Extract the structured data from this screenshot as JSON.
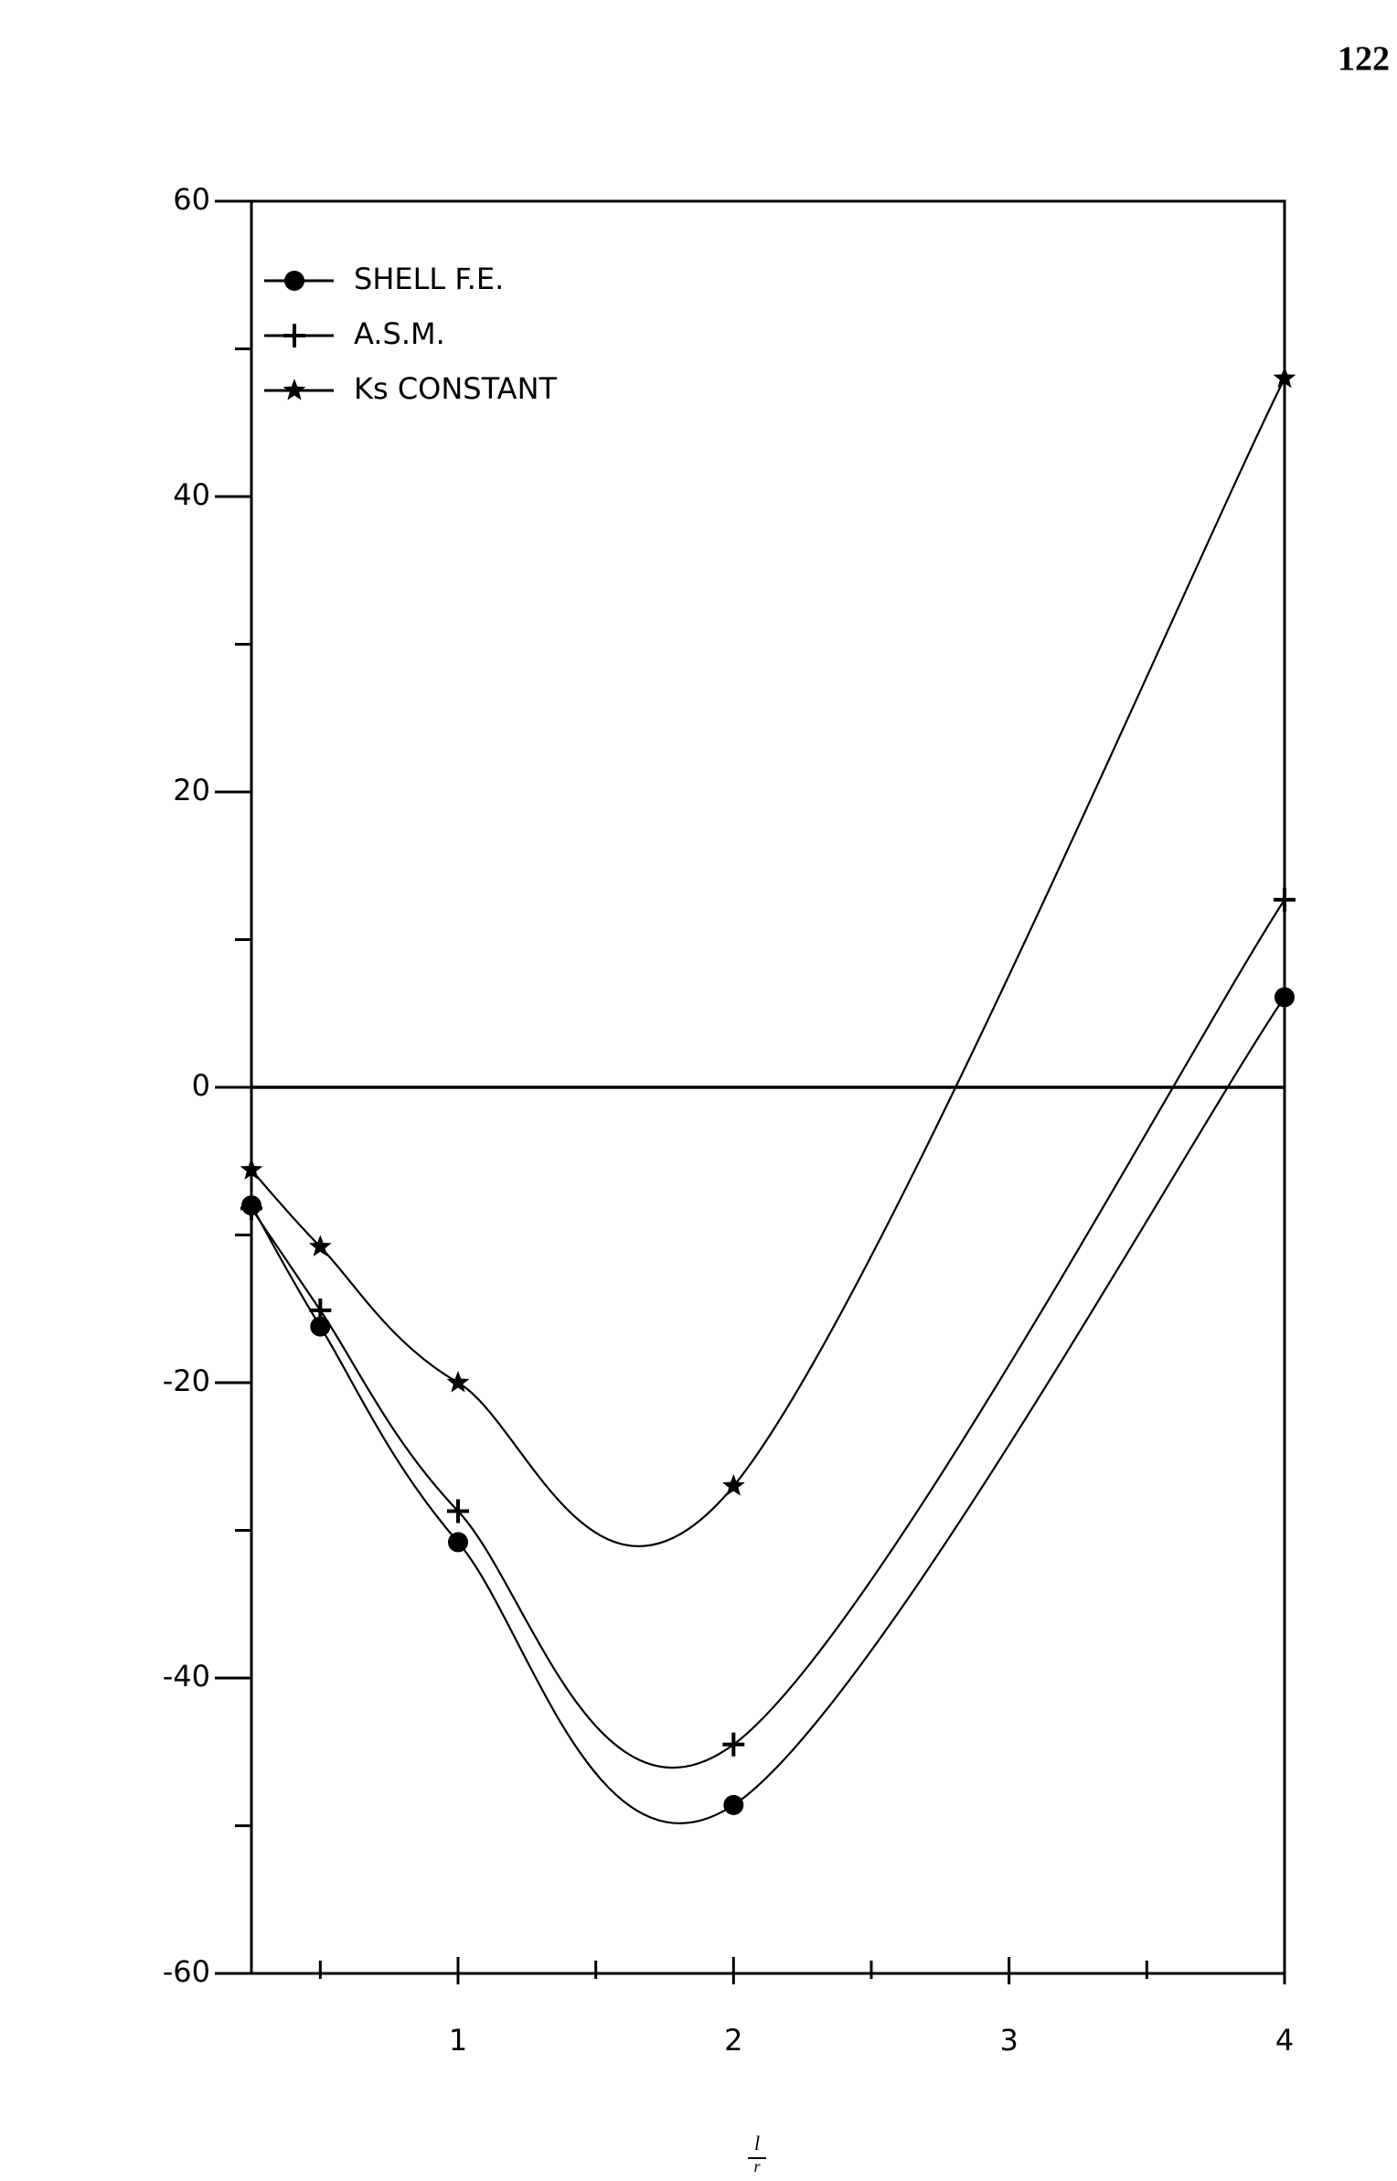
{
  "page_number": "122",
  "chart_data": {
    "type": "line",
    "x": [
      0.25,
      0.5,
      1,
      2,
      4
    ],
    "series": [
      {
        "name": "SHELL F.E.",
        "color": "#000000",
        "marker": "circle",
        "values": [
          -8,
          -16.2,
          -30.8,
          -48.6,
          6.1
        ]
      },
      {
        "name": "A.S.M.",
        "color": "#000000",
        "marker": "plus",
        "values": [
          -8.2,
          -15.1,
          -28.7,
          -44.5,
          12.7
        ]
      },
      {
        "name": "Ks CONSTANT",
        "color": "#000000",
        "marker": "star",
        "values": [
          -5.6,
          -10.8,
          -20,
          -27,
          48
        ]
      }
    ],
    "xlim": [
      0.25,
      4
    ],
    "xticks": [
      1,
      2,
      3,
      4
    ],
    "xminorticks": [
      0.5,
      1.5,
      2.5,
      3.5
    ],
    "ylim": [
      -60,
      60
    ],
    "yticks": [
      -60,
      -40,
      -20,
      0,
      20,
      40,
      60
    ],
    "yminorticks": [
      -50,
      -30,
      -10,
      10,
      30,
      50
    ],
    "xlabel": {
      "numerator": "l",
      "denominator": "r"
    },
    "zero_line": true,
    "legend": "upper left"
  }
}
